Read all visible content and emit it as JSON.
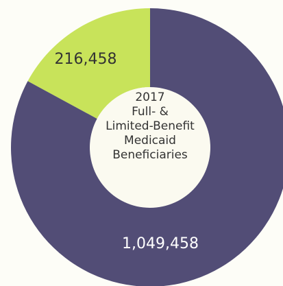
{
  "chart_data": {
    "type": "pie",
    "variant": "donut",
    "center_label": [
      "2017",
      "Full- &",
      "Limited-Benefit",
      "Medicaid",
      "Beneficiaries"
    ],
    "slices": [
      {
        "value": 216458,
        "label": "216,458",
        "color": "#c8e35a",
        "label_color": "#333333"
      },
      {
        "value": 1049458,
        "label": "1,049,458",
        "color": "#524d76",
        "label_color": "#ffffff"
      }
    ],
    "background": "#fdfdf7",
    "center_color": "#fbfaf0"
  }
}
